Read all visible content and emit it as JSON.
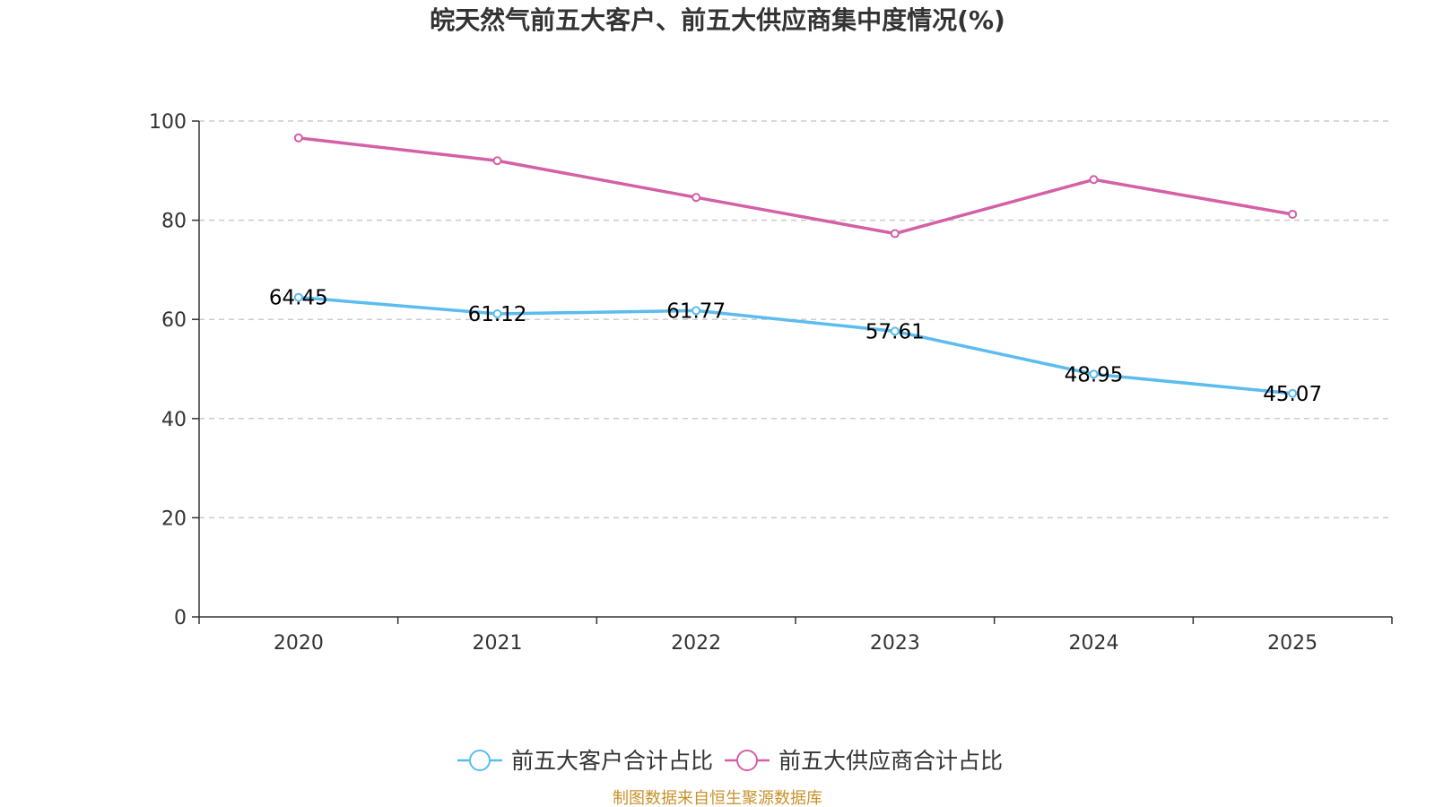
{
  "chart_data": {
    "type": "line",
    "title": "皖天然气前五大客户、前五大供应商集中度情况(%)",
    "categories": [
      "2020",
      "2021",
      "2022",
      "2023",
      "2024",
      "2025"
    ],
    "ylim": [
      0,
      100
    ],
    "yticks": [
      0,
      20,
      40,
      60,
      80,
      100
    ],
    "grid": "horizontal-dashed",
    "legend_position": "bottom-center",
    "series": [
      {
        "name": "前五大客户合计占比",
        "color": "#5bbcef",
        "values": [
          64.45,
          61.12,
          61.77,
          57.61,
          48.95,
          45.07
        ],
        "data_labels": [
          "64.45",
          "61.12",
          "61.77",
          "57.61",
          "48.95",
          "45.07"
        ]
      },
      {
        "name": "前五大供应商合计占比",
        "color": "#d460a6",
        "values": [
          96.6,
          92.0,
          84.6,
          77.3,
          88.2,
          81.2
        ],
        "data_labels": []
      }
    ]
  },
  "source_text": "制图数据来自恒生聚源数据库"
}
